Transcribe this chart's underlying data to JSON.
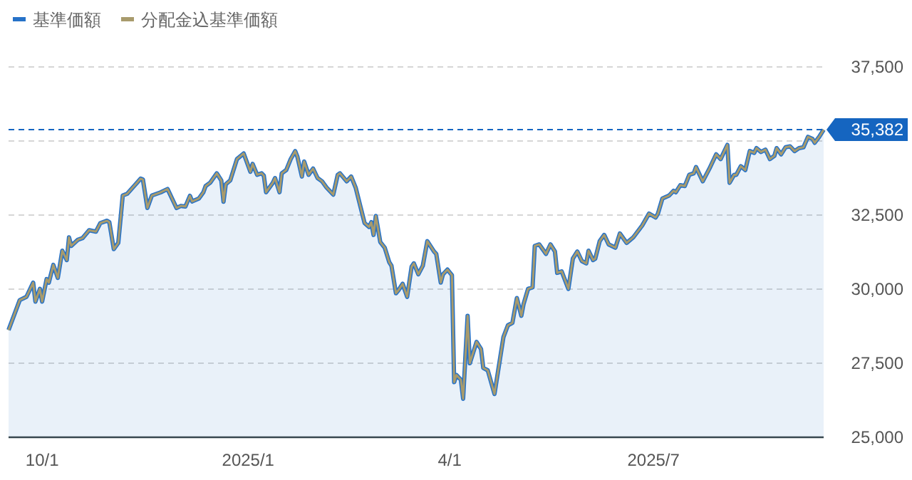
{
  "chart_data": {
    "type": "line",
    "x": [
      "2024-09-16",
      "2024-09-21",
      "2024-09-24",
      "2024-09-27",
      "2024-09-28",
      "2024-09-30",
      "2024-10-01",
      "2024-10-03",
      "2024-10-04",
      "2024-10-06",
      "2024-10-08",
      "2024-10-10",
      "2024-10-12",
      "2024-10-13",
      "2024-10-14",
      "2024-10-17",
      "2024-10-19",
      "2024-10-22",
      "2024-10-25",
      "2024-10-27",
      "2024-10-30",
      "2024-10-31",
      "2024-11-02",
      "2024-11-04",
      "2024-11-06",
      "2024-11-08",
      "2024-11-14",
      "2024-11-15",
      "2024-11-17",
      "2024-11-19",
      "2024-11-23",
      "2024-11-26",
      "2024-11-30",
      "2024-12-02",
      "2024-12-04",
      "2024-12-06",
      "2024-12-07",
      "2024-12-10",
      "2024-12-12",
      "2024-12-13",
      "2024-12-15",
      "2024-12-18",
      "2024-12-20",
      "2024-12-21",
      "2024-12-22",
      "2024-12-24",
      "2024-12-27",
      "2024-12-30",
      "2025-01-02",
      "2025-01-03",
      "2025-01-05",
      "2025-01-07",
      "2025-01-08",
      "2025-01-09",
      "2025-01-12",
      "2025-01-13",
      "2025-01-15",
      "2025-01-16",
      "2025-01-18",
      "2025-01-20",
      "2025-01-22",
      "2025-01-23",
      "2025-01-25",
      "2025-01-26",
      "2025-01-28",
      "2025-01-30",
      "2025-02-01",
      "2025-02-03",
      "2025-02-05",
      "2025-02-08",
      "2025-02-10",
      "2025-02-11",
      "2025-02-14",
      "2025-02-16",
      "2025-02-18",
      "2025-02-22",
      "2025-02-24",
      "2025-02-25",
      "2025-02-26",
      "2025-02-27",
      "2025-03-01",
      "2025-03-03",
      "2025-03-05",
      "2025-03-06",
      "2025-03-08",
      "2025-03-09",
      "2025-03-11",
      "2025-03-13",
      "2025-03-15",
      "2025-03-16",
      "2025-03-18",
      "2025-03-20",
      "2025-03-22",
      "2025-03-25",
      "2025-03-26",
      "2025-03-28",
      "2025-03-29",
      "2025-03-31",
      "2025-04-02",
      "2025-04-03",
      "2025-04-04",
      "2025-04-06",
      "2025-04-07",
      "2025-04-09",
      "2025-04-10",
      "2025-04-13",
      "2025-04-15",
      "2025-04-16",
      "2025-04-18",
      "2025-04-21",
      "2025-04-23",
      "2025-04-25",
      "2025-04-27",
      "2025-04-29",
      "2025-05-01",
      "2025-05-03",
      "2025-05-04",
      "2025-05-06",
      "2025-05-08",
      "2025-05-09",
      "2025-05-11",
      "2025-05-14",
      "2025-05-16",
      "2025-05-18",
      "2025-05-19",
      "2025-05-21",
      "2025-05-24",
      "2025-05-26",
      "2025-05-28",
      "2025-05-30",
      "2025-06-01",
      "2025-06-02",
      "2025-06-04",
      "2025-06-05",
      "2025-06-07",
      "2025-06-09",
      "2025-06-11",
      "2025-06-14",
      "2025-06-16",
      "2025-06-19",
      "2025-06-22",
      "2025-06-26",
      "2025-06-29",
      "2025-07-02",
      "2025-07-03",
      "2025-07-05",
      "2025-07-08",
      "2025-07-10",
      "2025-07-11",
      "2025-07-13",
      "2025-07-15",
      "2025-07-17",
      "2025-07-19",
      "2025-07-20",
      "2025-07-23",
      "2025-07-26",
      "2025-07-29",
      "2025-07-31",
      "2025-08-03",
      "2025-08-04",
      "2025-08-06",
      "2025-08-07",
      "2025-08-09",
      "2025-08-11",
      "2025-08-13",
      "2025-08-15",
      "2025-08-16",
      "2025-08-18",
      "2025-08-20",
      "2025-08-22",
      "2025-08-24",
      "2025-08-25",
      "2025-08-27",
      "2025-08-29",
      "2025-08-31",
      "2025-09-02",
      "2025-09-04",
      "2025-09-06",
      "2025-09-08",
      "2025-09-10",
      "2025-09-11",
      "2025-09-13",
      "2025-09-15"
    ],
    "series": [
      {
        "name": "基準価額",
        "type": "area",
        "color": "#2672c8",
        "values": [
          28620,
          29630,
          29740,
          30220,
          29580,
          30010,
          29580,
          30340,
          30220,
          30820,
          30380,
          31300,
          30980,
          31750,
          31460,
          31670,
          31720,
          31990,
          31940,
          32230,
          32310,
          32260,
          31350,
          31560,
          33160,
          33220,
          33730,
          33700,
          32740,
          33160,
          33270,
          33380,
          32740,
          32810,
          32790,
          33150,
          32960,
          33060,
          33270,
          33480,
          33590,
          33910,
          33670,
          32950,
          33540,
          33670,
          34390,
          34580,
          33960,
          34230,
          33860,
          33910,
          33830,
          33270,
          33590,
          33750,
          33270,
          33910,
          34020,
          34390,
          34660,
          34470,
          33800,
          34310,
          33860,
          34070,
          33750,
          33640,
          33430,
          33190,
          33860,
          33910,
          33640,
          33800,
          33430,
          32230,
          32100,
          32260,
          31830,
          32470,
          31590,
          31400,
          30910,
          30790,
          29860,
          29950,
          30180,
          29740,
          30760,
          30870,
          30500,
          30790,
          31620,
          31270,
          31190,
          30220,
          30500,
          30660,
          30470,
          26860,
          27100,
          26940,
          26300,
          29100,
          27500,
          28220,
          27980,
          27340,
          27260,
          26460,
          27420,
          28380,
          28780,
          28860,
          29700,
          29100,
          29500,
          30010,
          30060,
          31460,
          31510,
          31190,
          31510,
          31270,
          30550,
          30600,
          30010,
          31030,
          31270,
          30950,
          30870,
          31300,
          30980,
          31030,
          31620,
          31830,
          31510,
          31400,
          31880,
          31560,
          31750,
          32150,
          32550,
          32420,
          32550,
          33060,
          33160,
          33320,
          33270,
          33510,
          33480,
          33860,
          33910,
          34120,
          33640,
          34070,
          34550,
          34390,
          34870,
          33590,
          33860,
          33860,
          34150,
          34020,
          34660,
          34600,
          34760,
          34630,
          34710,
          34390,
          34500,
          34760,
          34550,
          34790,
          34820,
          34660,
          34760,
          34790,
          35140,
          35070,
          34940,
          35140,
          35382
        ]
      },
      {
        "name": "分配金込基準価額",
        "type": "line",
        "color": "#a89b6c",
        "values": [
          28620,
          29630,
          29740,
          30220,
          29580,
          30010,
          29580,
          30340,
          30220,
          30820,
          30380,
          31300,
          30980,
          31750,
          31460,
          31670,
          31720,
          31990,
          31940,
          32230,
          32310,
          32260,
          31350,
          31560,
          33160,
          33220,
          33730,
          33700,
          32740,
          33160,
          33270,
          33380,
          32740,
          32810,
          32790,
          33150,
          32960,
          33060,
          33270,
          33480,
          33590,
          33910,
          33670,
          32950,
          33540,
          33670,
          34390,
          34580,
          33960,
          34230,
          33860,
          33910,
          33830,
          33270,
          33590,
          33750,
          33270,
          33910,
          34020,
          34390,
          34660,
          34470,
          33800,
          34310,
          33860,
          34070,
          33750,
          33640,
          33430,
          33190,
          33860,
          33910,
          33640,
          33800,
          33430,
          32230,
          32100,
          32260,
          31830,
          32470,
          31590,
          31400,
          30910,
          30790,
          29860,
          29950,
          30180,
          29740,
          30760,
          30870,
          30500,
          30790,
          31620,
          31270,
          31190,
          30220,
          30500,
          30660,
          30470,
          26860,
          27100,
          26940,
          26300,
          29100,
          27500,
          28220,
          27980,
          27340,
          27260,
          26460,
          27420,
          28380,
          28780,
          28860,
          29700,
          29100,
          29500,
          30010,
          30060,
          31460,
          31510,
          31190,
          31510,
          31270,
          30550,
          30600,
          30010,
          31030,
          31270,
          30950,
          30870,
          31300,
          30980,
          31030,
          31620,
          31830,
          31510,
          31400,
          31880,
          31560,
          31750,
          32150,
          32550,
          32420,
          32550,
          33060,
          33160,
          33320,
          33270,
          33510,
          33480,
          33860,
          33910,
          34120,
          33640,
          34070,
          34550,
          34390,
          34870,
          33590,
          33860,
          33860,
          34150,
          34020,
          34660,
          34600,
          34760,
          34630,
          34710,
          34390,
          34500,
          34760,
          34550,
          34790,
          34820,
          34660,
          34760,
          34790,
          35140,
          35070,
          34940,
          35140,
          35382
        ]
      }
    ],
    "xlim": [
      "2024-09-16",
      "2025-09-15"
    ],
    "xticks": [
      {
        "value": "2024-10-01",
        "label": "10/1"
      },
      {
        "value": "2025-01-01",
        "label": "2025/1"
      },
      {
        "value": "2025-04-01",
        "label": "4/1"
      },
      {
        "value": "2025-07-01",
        "label": "2025/7"
      }
    ],
    "ylim": [
      25000,
      37500
    ],
    "yticks": [
      {
        "value": 25000,
        "label": "25,000"
      },
      {
        "value": 27500,
        "label": "27,500"
      },
      {
        "value": 30000,
        "label": "30,000"
      },
      {
        "value": 32500,
        "label": "32,500"
      },
      {
        "value": 35000,
        "label": null
      },
      {
        "value": 37500,
        "label": "37,500"
      }
    ],
    "ref_lines": [
      {
        "axis": "y",
        "value": 35382,
        "label": "35,382",
        "color": "#1565c0",
        "line_style": "dashed"
      }
    ],
    "grid": "y",
    "legend": "top left"
  }
}
